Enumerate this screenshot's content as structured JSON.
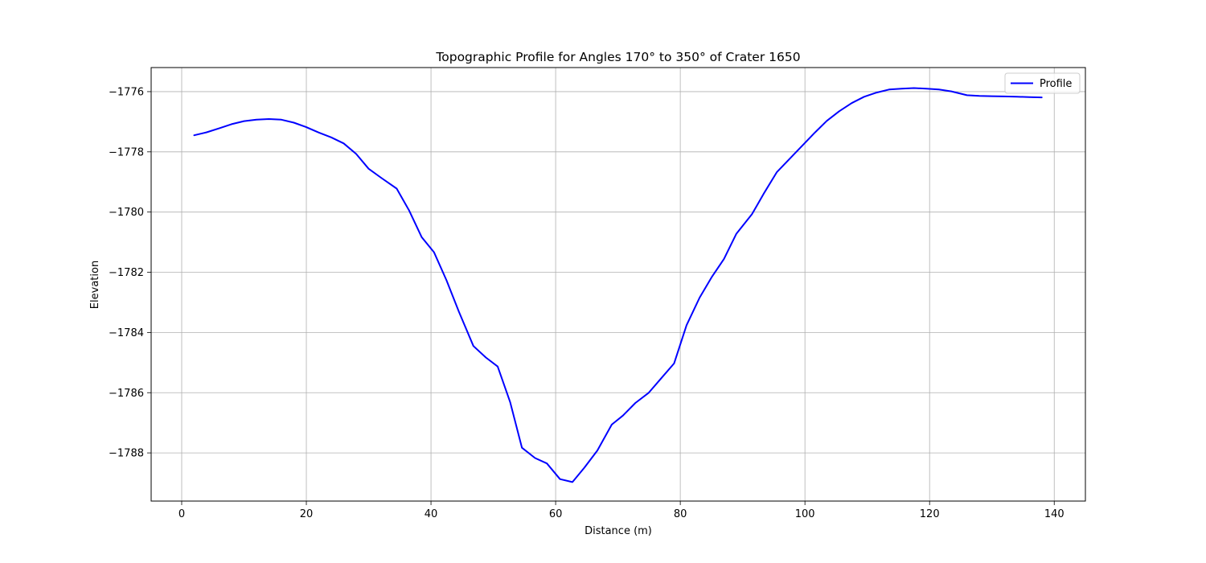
{
  "chart_data": {
    "type": "line",
    "title": "Topographic Profile for Angles 170° to 350° of Crater 1650",
    "xlabel": "Distance (m)",
    "ylabel": "Elevation",
    "xlim": [
      -4.9,
      145.0
    ],
    "ylim": [
      -1789.6,
      -1775.2
    ],
    "grid": true,
    "legend": "top-right",
    "x_ticks": [
      0,
      20,
      40,
      60,
      80,
      100,
      120,
      140
    ],
    "y_ticks": [
      -1788,
      -1786,
      -1784,
      -1782,
      -1780,
      -1778,
      -1776
    ],
    "x_tick_labels": [
      "0",
      "20",
      "40",
      "60",
      "80",
      "100",
      "120",
      "140"
    ],
    "y_tick_labels": [
      "−1788",
      "−1786",
      "−1784",
      "−1782",
      "−1780",
      "−1778",
      "−1776"
    ],
    "series": [
      {
        "name": "Profile",
        "color": "#0000ff",
        "x": [
          2,
          4,
          6,
          8,
          10,
          12,
          14,
          16,
          18,
          20,
          22,
          24,
          26,
          28,
          30,
          32,
          34.5,
          36.5,
          38.5,
          40.5,
          42.5,
          44.5,
          46.8,
          48.8,
          50.7,
          52.7,
          54.6,
          56.7,
          58.6,
          60.7,
          62.7,
          64.6,
          66.7,
          69,
          70.8,
          72.8,
          74.9,
          76.9,
          79,
          81,
          83.1,
          85.1,
          87,
          89,
          91.5,
          93.5,
          95.5,
          97.5,
          99.5,
          101.5,
          103.5,
          105.5,
          107.5,
          109.5,
          111.5,
          113.5,
          115.5,
          117.5,
          119.5,
          121.5,
          123.5,
          126,
          128,
          130,
          132,
          134,
          136,
          138
        ],
        "values": [
          -1777.45,
          -1777.35,
          -1777.22,
          -1777.08,
          -1776.98,
          -1776.93,
          -1776.91,
          -1776.93,
          -1777.03,
          -1777.18,
          -1777.36,
          -1777.52,
          -1777.72,
          -1778.07,
          -1778.56,
          -1778.86,
          -1779.22,
          -1779.95,
          -1780.83,
          -1781.34,
          -1782.27,
          -1783.32,
          -1784.45,
          -1784.83,
          -1785.13,
          -1786.31,
          -1787.83,
          -1788.17,
          -1788.35,
          -1788.87,
          -1788.97,
          -1788.49,
          -1787.92,
          -1787.06,
          -1786.76,
          -1786.34,
          -1786.01,
          -1785.53,
          -1785.03,
          -1783.76,
          -1782.84,
          -1782.14,
          -1781.56,
          -1780.72,
          -1780.07,
          -1779.35,
          -1778.67,
          -1778.24,
          -1777.81,
          -1777.38,
          -1776.97,
          -1776.65,
          -1776.38,
          -1776.17,
          -1776.03,
          -1775.93,
          -1775.9,
          -1775.88,
          -1775.9,
          -1775.93,
          -1775.99,
          -1776.12,
          -1776.14,
          -1776.15,
          -1776.16,
          -1776.17,
          -1776.18,
          -1776.19
        ]
      }
    ]
  }
}
